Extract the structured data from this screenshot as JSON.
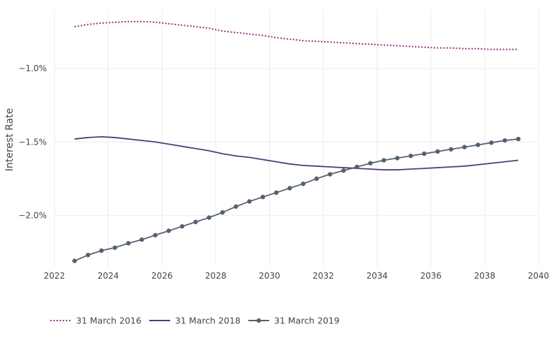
{
  "chart_data": {
    "type": "line",
    "title": "",
    "xlabel": "",
    "ylabel": "Interest Rate",
    "xlim": [
      2022,
      2040
    ],
    "ylim": [
      -2.35,
      -0.6
    ],
    "x_ticks": [
      {
        "value": 2022,
        "label": "2022"
      },
      {
        "value": 2024,
        "label": "2024"
      },
      {
        "value": 2026,
        "label": "2026"
      },
      {
        "value": 2028,
        "label": "2028"
      },
      {
        "value": 2030,
        "label": "2030"
      },
      {
        "value": 2032,
        "label": "2032"
      },
      {
        "value": 2034,
        "label": "2034"
      },
      {
        "value": 2036,
        "label": "2036"
      },
      {
        "value": 2038,
        "label": "2038"
      },
      {
        "value": 2040,
        "label": "2040"
      }
    ],
    "y_ticks": [
      {
        "value": -1.0,
        "label": "−1.0%"
      },
      {
        "value": -1.5,
        "label": "−1.5%"
      },
      {
        "value": -2.0,
        "label": "−2.0%"
      }
    ],
    "grid": true,
    "legend_position": "bottom-left",
    "series": [
      {
        "name": "31 March 2016",
        "color": "#9b2c82",
        "style": "dotted",
        "markers": false,
        "x": [
          2022.75,
          2023.25,
          2023.75,
          2024.25,
          2024.75,
          2025.25,
          2025.75,
          2026.25,
          2026.75,
          2027.25,
          2027.75,
          2028.25,
          2028.75,
          2029.25,
          2029.75,
          2030.25,
          2030.75,
          2031.25,
          2031.75,
          2032.25,
          2032.75,
          2033.25,
          2033.75,
          2034.25,
          2034.75,
          2035.25,
          2035.75,
          2036.25,
          2036.75,
          2037.25,
          2037.75,
          2038.25,
          2038.75,
          2039.25
        ],
        "y": [
          -0.715,
          -0.7,
          -0.69,
          -0.685,
          -0.68,
          -0.68,
          -0.685,
          -0.695,
          -0.705,
          -0.715,
          -0.725,
          -0.745,
          -0.755,
          -0.765,
          -0.775,
          -0.79,
          -0.8,
          -0.81,
          -0.815,
          -0.82,
          -0.825,
          -0.83,
          -0.835,
          -0.84,
          -0.845,
          -0.85,
          -0.855,
          -0.86,
          -0.86,
          -0.865,
          -0.865,
          -0.87,
          -0.87,
          -0.87
        ]
      },
      {
        "name": "31 March 2018",
        "color": "#4a3d7c",
        "style": "solid",
        "markers": false,
        "x": [
          2022.75,
          2023.25,
          2023.75,
          2024.25,
          2024.75,
          2025.25,
          2025.75,
          2026.25,
          2026.75,
          2027.25,
          2027.75,
          2028.25,
          2028.75,
          2029.25,
          2029.75,
          2030.25,
          2030.75,
          2031.25,
          2031.75,
          2032.25,
          2032.75,
          2033.25,
          2033.75,
          2034.25,
          2034.75,
          2035.25,
          2035.75,
          2036.25,
          2036.75,
          2037.25,
          2037.75,
          2038.25,
          2038.75,
          2039.25
        ],
        "y": [
          -1.48,
          -1.47,
          -1.465,
          -1.47,
          -1.48,
          -1.49,
          -1.5,
          -1.515,
          -1.53,
          -1.545,
          -1.56,
          -1.58,
          -1.595,
          -1.605,
          -1.62,
          -1.635,
          -1.65,
          -1.66,
          -1.665,
          -1.67,
          -1.675,
          -1.68,
          -1.685,
          -1.69,
          -1.69,
          -1.685,
          -1.68,
          -1.675,
          -1.67,
          -1.665,
          -1.655,
          -1.645,
          -1.635,
          -1.625
        ]
      },
      {
        "name": "31 March 2019",
        "color": "#546270",
        "style": "solid",
        "markers": true,
        "x": [
          2022.75,
          2023.25,
          2023.75,
          2024.25,
          2024.75,
          2025.25,
          2025.75,
          2026.25,
          2026.75,
          2027.25,
          2027.75,
          2028.25,
          2028.75,
          2029.25,
          2029.75,
          2030.25,
          2030.75,
          2031.25,
          2031.75,
          2032.25,
          2032.75,
          2033.25,
          2033.75,
          2034.25,
          2034.75,
          2035.25,
          2035.75,
          2036.25,
          2036.75,
          2037.25,
          2037.75,
          2038.25,
          2038.75,
          2039.25
        ],
        "y": [
          -2.31,
          -2.27,
          -2.24,
          -2.22,
          -2.19,
          -2.165,
          -2.135,
          -2.105,
          -2.075,
          -2.045,
          -2.015,
          -1.98,
          -1.94,
          -1.905,
          -1.875,
          -1.845,
          -1.815,
          -1.785,
          -1.75,
          -1.72,
          -1.695,
          -1.67,
          -1.645,
          -1.625,
          -1.61,
          -1.595,
          -1.58,
          -1.565,
          -1.55,
          -1.535,
          -1.52,
          -1.505,
          -1.49,
          -1.48
        ]
      }
    ]
  }
}
